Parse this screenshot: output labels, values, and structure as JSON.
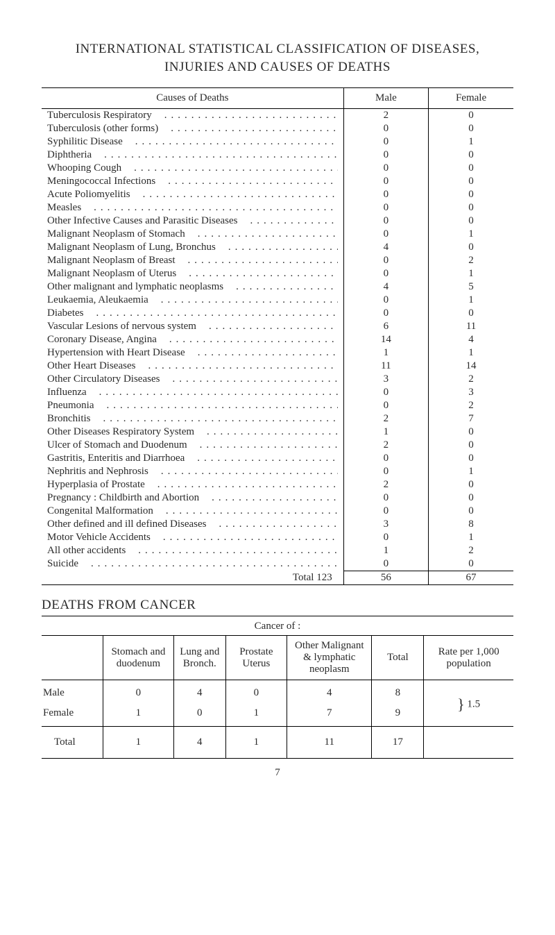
{
  "title_line1": "INTERNATIONAL STATISTICAL CLASSIFICATION OF DISEASES,",
  "title_line2": "INJURIES AND CAUSES OF DEATHS",
  "main_table": {
    "headers": [
      "Causes of Deaths",
      "Male",
      "Female"
    ],
    "rows": [
      {
        "cause": "Tuberculosis Respiratory",
        "male": "2",
        "female": "0"
      },
      {
        "cause": "Tuberculosis (other forms)",
        "male": "0",
        "female": "0"
      },
      {
        "cause": "Syphilitic Disease",
        "male": "0",
        "female": "1"
      },
      {
        "cause": "Diphtheria",
        "male": "0",
        "female": "0"
      },
      {
        "cause": "Whooping Cough",
        "male": "0",
        "female": "0"
      },
      {
        "cause": "Meningococcal Infections",
        "male": "0",
        "female": "0"
      },
      {
        "cause": "Acute Poliomyelitis",
        "male": "0",
        "female": "0"
      },
      {
        "cause": "Measles",
        "male": "0",
        "female": "0"
      },
      {
        "cause": "Other Infective Causes and Parasitic Diseases",
        "male": "0",
        "female": "0"
      },
      {
        "cause": "Malignant Neoplasm of Stomach",
        "male": "0",
        "female": "1"
      },
      {
        "cause": "Malignant Neoplasm of Lung, Bronchus",
        "male": "4",
        "female": "0"
      },
      {
        "cause": "Malignant Neoplasm of Breast",
        "male": "0",
        "female": "2"
      },
      {
        "cause": "Malignant Neoplasm of Uterus",
        "male": "0",
        "female": "1"
      },
      {
        "cause": "Other malignant and lymphatic neoplasms",
        "male": "4",
        "female": "5"
      },
      {
        "cause": "Leukaemia, Aleukaemia",
        "male": "0",
        "female": "1"
      },
      {
        "cause": "Diabetes",
        "male": "0",
        "female": "0"
      },
      {
        "cause": "Vascular Lesions of nervous system",
        "male": "6",
        "female": "11"
      },
      {
        "cause": "Coronary Disease, Angina",
        "male": "14",
        "female": "4"
      },
      {
        "cause": "Hypertension with Heart Disease",
        "male": "1",
        "female": "1"
      },
      {
        "cause": "Other Heart Diseases",
        "male": "11",
        "female": "14"
      },
      {
        "cause": "Other Circulatory Diseases",
        "male": "3",
        "female": "2"
      },
      {
        "cause": "Influenza",
        "male": "0",
        "female": "3"
      },
      {
        "cause": "Pneumonia",
        "male": "0",
        "female": "2"
      },
      {
        "cause": "Bronchitis",
        "male": "2",
        "female": "7"
      },
      {
        "cause": "Other Diseases Respiratory System",
        "male": "1",
        "female": "0"
      },
      {
        "cause": "Ulcer of Stomach and Duodenum",
        "male": "2",
        "female": "0"
      },
      {
        "cause": "Gastritis, Enteritis and Diarrhoea",
        "male": "0",
        "female": "0"
      },
      {
        "cause": "Nephritis and Nephrosis",
        "male": "0",
        "female": "1"
      },
      {
        "cause": "Hyperplasia of Prostate",
        "male": "2",
        "female": "0"
      },
      {
        "cause": "Pregnancy : Childbirth and Abortion",
        "male": "0",
        "female": "0"
      },
      {
        "cause": "Congenital Malformation",
        "male": "0",
        "female": "0"
      },
      {
        "cause": "Other defined and ill defined Diseases",
        "male": "3",
        "female": "8"
      },
      {
        "cause": "Motor Vehicle Accidents",
        "male": "0",
        "female": "1"
      },
      {
        "cause": "All other accidents",
        "male": "1",
        "female": "2"
      },
      {
        "cause": "Suicide",
        "male": "0",
        "female": "0"
      }
    ],
    "total_label": "Total 123",
    "total_male": "56",
    "total_female": "67"
  },
  "cancer_section_title": "DEATHS FROM CANCER",
  "cancer_of_label": "Cancer of :",
  "cancer_table": {
    "headers": {
      "blank": "",
      "stomach": "Stomach and duodenum",
      "lung": "Lung and Bronch.",
      "prostate": "Prostate Uterus",
      "other": "Other Malignant & lymphatic neoplasm",
      "total": "Total",
      "rate": "Rate per 1,000 population"
    },
    "rows": [
      {
        "label": "Male",
        "stomach": "0",
        "lung": "4",
        "prostate": "0",
        "other": "4",
        "total": "8"
      },
      {
        "label": "Female",
        "stomach": "1",
        "lung": "0",
        "prostate": "1",
        "other": "7",
        "total": "9"
      }
    ],
    "combined_rate": "1.5",
    "total_row": {
      "label": "Total",
      "stomach": "1",
      "lung": "4",
      "prostate": "1",
      "other": "11",
      "total": "17",
      "rate": ""
    }
  },
  "page_number": "7"
}
